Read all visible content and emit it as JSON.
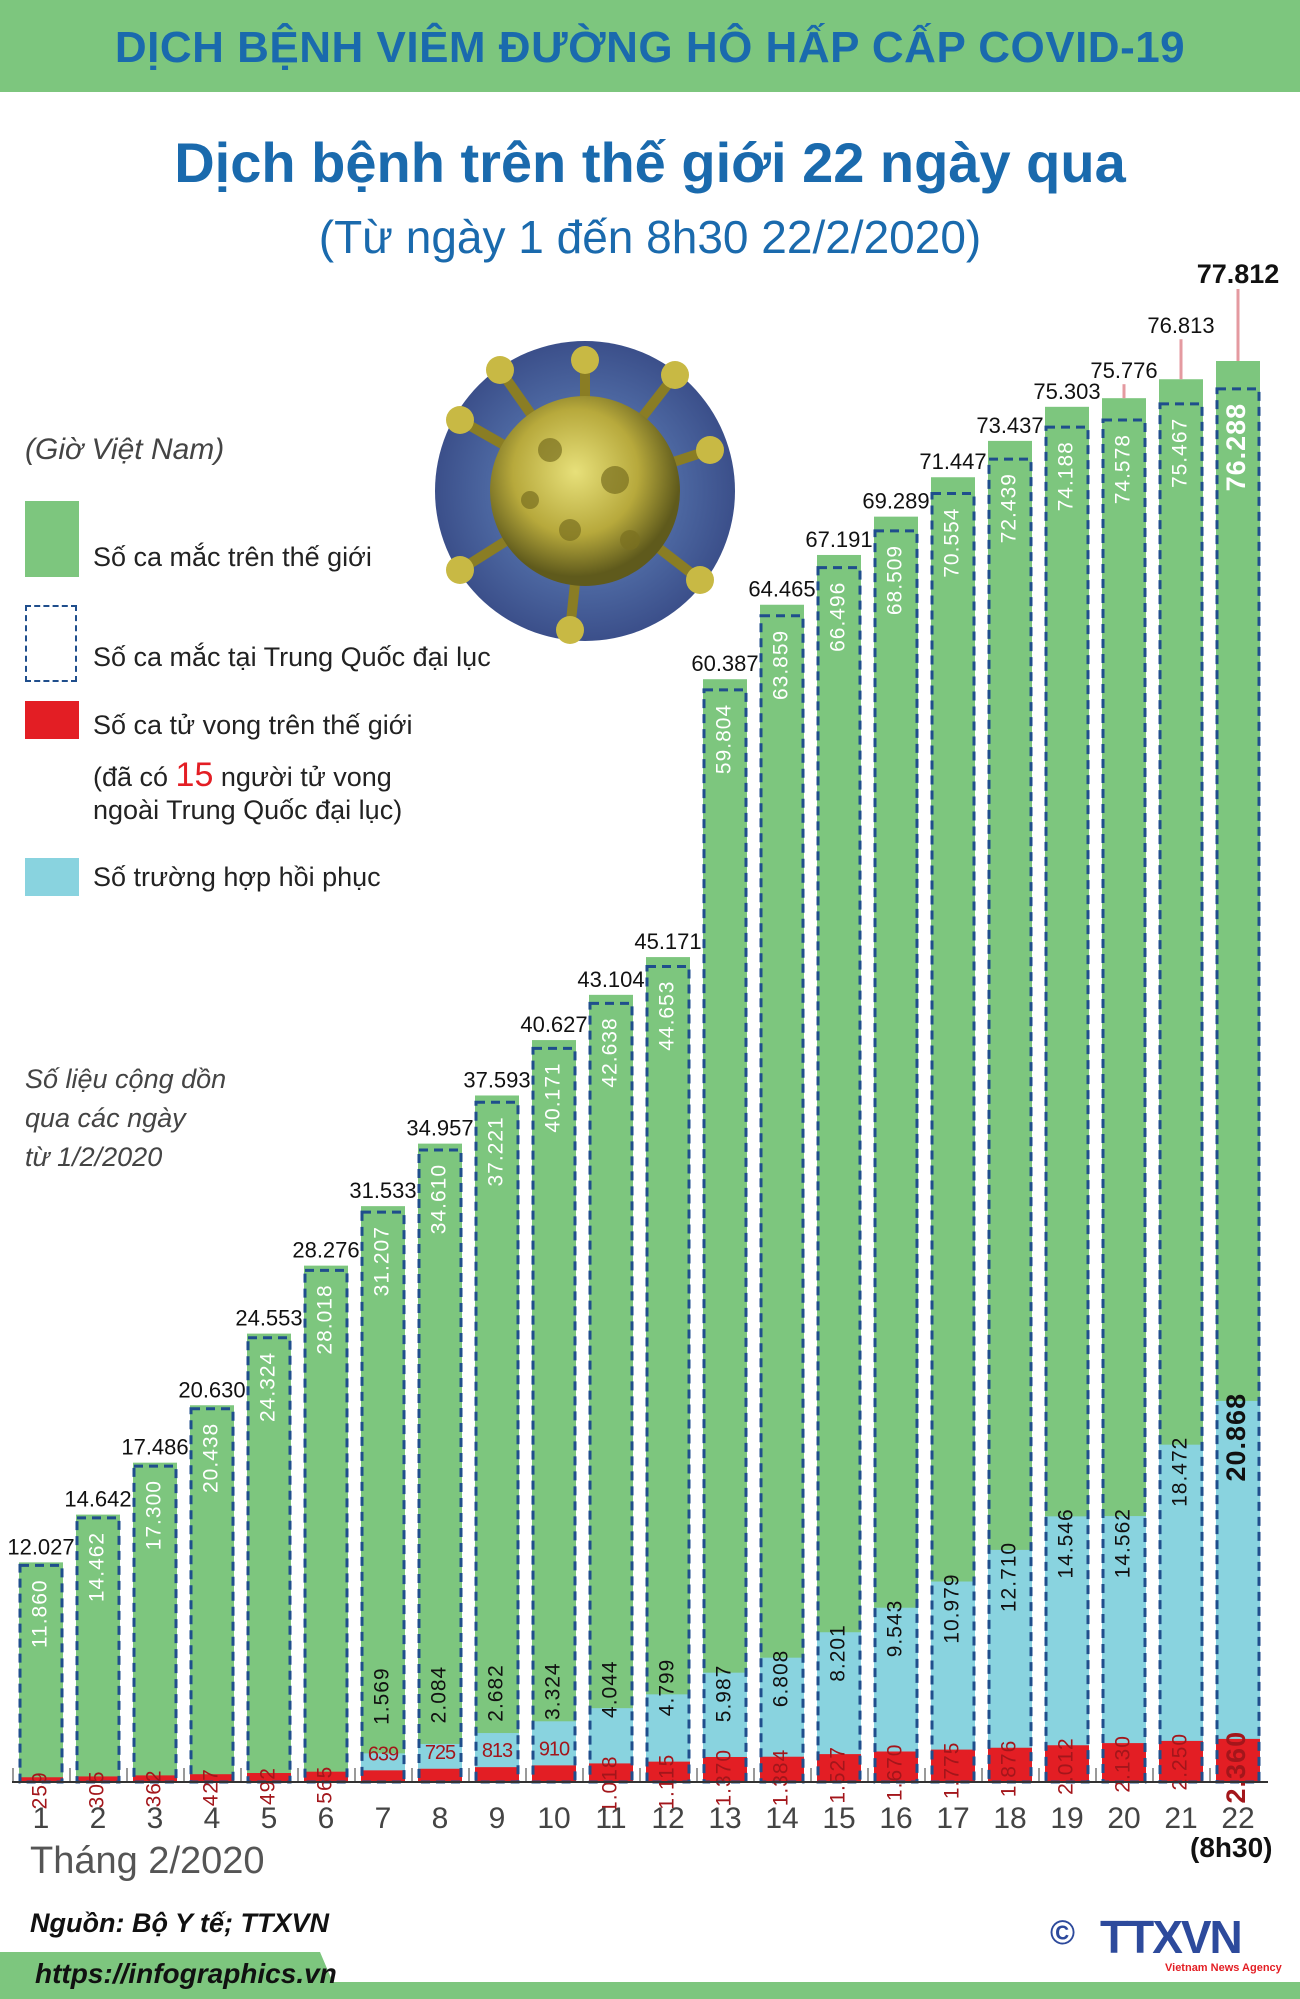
{
  "header": {
    "banner": "DỊCH BỆNH VIÊM ĐƯỜNG HÔ HẤP CẤP COVID-19"
  },
  "title": "Dịch bệnh trên thế giới 22 ngày qua",
  "subtitle": "(Từ ngày 1 đến 8h30 22/2/2020)",
  "legend": {
    "timezone": "(Giờ Việt Nam)",
    "world_cases": "Số ca mắc trên thế giới",
    "china_cases": "Số ca mắc tại Trung Quốc đại lục",
    "deaths": "Số ca tử vong trên thế giới",
    "deaths_note_pre": "(đã có ",
    "deaths_note_num": "15",
    "deaths_note_post": " người tử vong",
    "deaths_note_line2": "ngoài Trung Quốc đại lục)",
    "recovered": "Số trường hợp hồi phục"
  },
  "note": [
    "Số liệu cộng dồn",
    "qua các ngày",
    "từ 1/2/2020"
  ],
  "colors": {
    "world": "#7dc67e",
    "china_outline": "#1f4e8c",
    "deaths": "#e31e24",
    "recovered": "#89d3df",
    "title": "#1a6aad"
  },
  "chart_data": {
    "type": "bar",
    "xlabel": "Tháng 2/2020",
    "last_day_note": "(8h30)",
    "categories": [
      "1",
      "2",
      "3",
      "4",
      "5",
      "6",
      "7",
      "8",
      "9",
      "10",
      "11",
      "12",
      "13",
      "14",
      "15",
      "16",
      "17",
      "18",
      "19",
      "20",
      "21",
      "22"
    ],
    "series": [
      {
        "name": "Số ca mắc trên thế giới",
        "labels": [
          "12.027",
          "14.642",
          "17.486",
          "20.630",
          "24.553",
          "28.276",
          "31.533",
          "34.957",
          "37.593",
          "40.627",
          "43.104",
          "45.171",
          "60.387",
          "64.465",
          "67.191",
          "69.289",
          "71.447",
          "73.437",
          "75.303",
          "75.776",
          "76.813",
          "77.812"
        ],
        "values": [
          12027,
          14642,
          17486,
          20630,
          24553,
          28276,
          31533,
          34957,
          37593,
          40627,
          43104,
          45171,
          60387,
          64465,
          67191,
          69289,
          71447,
          73437,
          75303,
          75776,
          76813,
          77812
        ]
      },
      {
        "name": "Số ca mắc tại Trung Quốc đại lục",
        "labels": [
          "11.860",
          "14.462",
          "17.300",
          "20.438",
          "24.324",
          "28.018",
          "31.207",
          "34.610",
          "37.221",
          "40.171",
          "42.638",
          "44.653",
          "59.804",
          "63.859",
          "66.496",
          "68.509",
          "70.554",
          "72.439",
          "74.188",
          "74.578",
          "75.467",
          "76.288"
        ],
        "values": [
          11860,
          14462,
          17300,
          20438,
          24324,
          28018,
          31207,
          34610,
          37221,
          40171,
          42638,
          44653,
          59804,
          63859,
          66496,
          68509,
          70554,
          72439,
          74188,
          74578,
          75467,
          76288
        ]
      },
      {
        "name": "Số trường hợp hồi phục",
        "labels": [
          null,
          null,
          null,
          null,
          null,
          null,
          "1.569",
          "2.084",
          "2.682",
          "3.324",
          "4.044",
          "4.799",
          "5.987",
          "6.808",
          "8.201",
          "9.543",
          "10.979",
          "12.710",
          "14.546",
          "14.562",
          "18.472",
          "20.868"
        ],
        "values": [
          null,
          null,
          null,
          null,
          null,
          null,
          1569,
          2084,
          2682,
          3324,
          4044,
          4799,
          5987,
          6808,
          8201,
          9543,
          10979,
          12710,
          14546,
          14562,
          18472,
          20868
        ]
      },
      {
        "name": "Số ca tử vong trên thế giới",
        "labels": [
          "259",
          "305",
          "362",
          "427",
          "492",
          "565",
          "639",
          "725",
          "813",
          "910",
          "1.018",
          "1.115",
          "1.370",
          "1.384",
          "1.527",
          "1.670",
          "1.775",
          "1.876",
          "2.012",
          "2.130",
          "2.250",
          "2.360"
        ],
        "values": [
          259,
          305,
          362,
          427,
          492,
          565,
          639,
          725,
          813,
          910,
          1018,
          1115,
          1370,
          1384,
          1527,
          1670,
          1775,
          1876,
          2012,
          2130,
          2250,
          2360
        ]
      }
    ]
  },
  "source": "Nguồn: Bộ Y tế; TTXVN",
  "url": "https://infographics.vn",
  "logo": {
    "text": "TTXVN",
    "tagline": "Vietnam News Agency",
    "copyright": "©"
  }
}
